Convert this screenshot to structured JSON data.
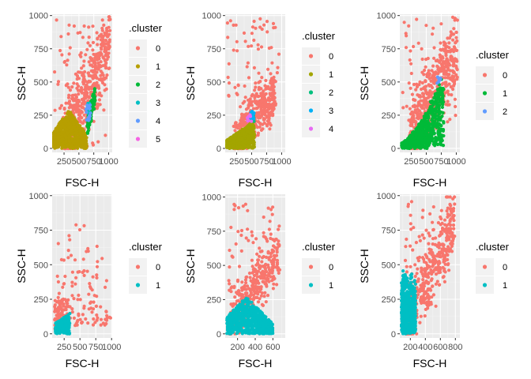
{
  "chart_data": [
    {
      "type": "scatter",
      "xlabel": "FSC-H",
      "ylabel": "SSC-H",
      "xlim": [
        50,
        1060
      ],
      "ylim": [
        -30,
        1010
      ],
      "xticks": [
        250,
        500,
        750,
        1000
      ],
      "xtick_labels": [
        "250",
        "500",
        "750",
        "1000"
      ],
      "yticks": [
        0,
        250,
        500,
        750,
        1000
      ],
      "ytick_labels": [
        "0",
        "250",
        "500",
        "750",
        "1000"
      ],
      "legend_title": ".cluster",
      "legend_position": "right",
      "series": [
        {
          "name": "0",
          "color": "#F8766D"
        },
        {
          "name": "1",
          "color": "#B79F00"
        },
        {
          "name": "2",
          "color": "#00BA38"
        },
        {
          "name": "3",
          "color": "#00BFC4"
        },
        {
          "name": "4",
          "color": "#619CFF"
        },
        {
          "name": "5",
          "color": "#F564E3"
        }
      ]
    },
    {
      "type": "scatter",
      "xlabel": "FSC-H",
      "ylabel": "SSC-H",
      "xlim": [
        60,
        1060
      ],
      "ylim": [
        -30,
        1010
      ],
      "xticks": [
        250,
        500,
        750,
        1000
      ],
      "xtick_labels": [
        "250",
        "500",
        "750",
        "1000"
      ],
      "yticks": [
        0,
        250,
        500,
        750,
        1000
      ],
      "ytick_labels": [
        "0",
        "250",
        "500",
        "750",
        "1000"
      ],
      "legend_title": ".cluster",
      "legend_position": "right",
      "series": [
        {
          "name": "0",
          "color": "#F8766D"
        },
        {
          "name": "1",
          "color": "#A3A500"
        },
        {
          "name": "2",
          "color": "#00BF7D"
        },
        {
          "name": "3",
          "color": "#00B0F6"
        },
        {
          "name": "4",
          "color": "#E76BF3"
        }
      ]
    },
    {
      "type": "scatter",
      "xlabel": "FSC-H",
      "ylabel": "SSC-H",
      "xlim": [
        60,
        1060
      ],
      "ylim": [
        -30,
        1010
      ],
      "xticks": [
        250,
        500,
        750,
        1000
      ],
      "xtick_labels": [
        "250",
        "500",
        "750",
        "1000"
      ],
      "yticks": [
        0,
        250,
        500,
        750,
        1000
      ],
      "ytick_labels": [
        "0",
        "250",
        "500",
        "750",
        "1000"
      ],
      "legend_title": ".cluster",
      "legend_position": "right",
      "series": [
        {
          "name": "0",
          "color": "#F8766D"
        },
        {
          "name": "1",
          "color": "#00BA38"
        },
        {
          "name": "2",
          "color": "#619CFF"
        }
      ]
    },
    {
      "type": "scatter",
      "xlabel": "FSC-H",
      "ylabel": "SSC-H",
      "xlim": [
        60,
        1010
      ],
      "ylim": [
        -30,
        1010
      ],
      "xticks": [
        250,
        500,
        750,
        1000
      ],
      "xtick_labels": [
        "250",
        "500",
        "750",
        "1000"
      ],
      "yticks": [
        0,
        250,
        500,
        750,
        1000
      ],
      "ytick_labels": [
        "0",
        "250",
        "500",
        "750",
        "1000"
      ],
      "legend_title": ".cluster",
      "legend_position": "right",
      "series": [
        {
          "name": "0",
          "color": "#F8766D"
        },
        {
          "name": "1",
          "color": "#00BFC4"
        }
      ]
    },
    {
      "type": "scatter",
      "xlabel": "FSC-H",
      "ylabel": "SSC-H",
      "xlim": [
        60,
        740
      ],
      "ylim": [
        -30,
        1020
      ],
      "xticks": [
        200,
        400,
        600
      ],
      "xtick_labels": [
        "200",
        "400",
        "600"
      ],
      "yticks": [
        0,
        250,
        500,
        750,
        1000
      ],
      "ytick_labels": [
        "0",
        "250",
        "500",
        "750",
        "1000"
      ],
      "legend_title": ".cluster",
      "legend_position": "right",
      "series": [
        {
          "name": "0",
          "color": "#F8766D"
        },
        {
          "name": "1",
          "color": "#00BFC4"
        }
      ]
    },
    {
      "type": "scatter",
      "xlabel": "FSC-H",
      "ylabel": "SSC-H",
      "xlim": [
        60,
        860
      ],
      "ylim": [
        -30,
        1010
      ],
      "xticks": [
        200,
        400,
        600,
        800
      ],
      "xtick_labels": [
        "200",
        "400",
        "600",
        "800"
      ],
      "yticks": [
        0,
        250,
        500,
        750,
        1000
      ],
      "ytick_labels": [
        "0",
        "250",
        "500",
        "750",
        "1000"
      ],
      "legend_title": ".cluster",
      "legend_position": "right",
      "series": [
        {
          "name": "0",
          "color": "#F8766D"
        },
        {
          "name": "1",
          "color": "#00BFC4"
        }
      ]
    }
  ]
}
